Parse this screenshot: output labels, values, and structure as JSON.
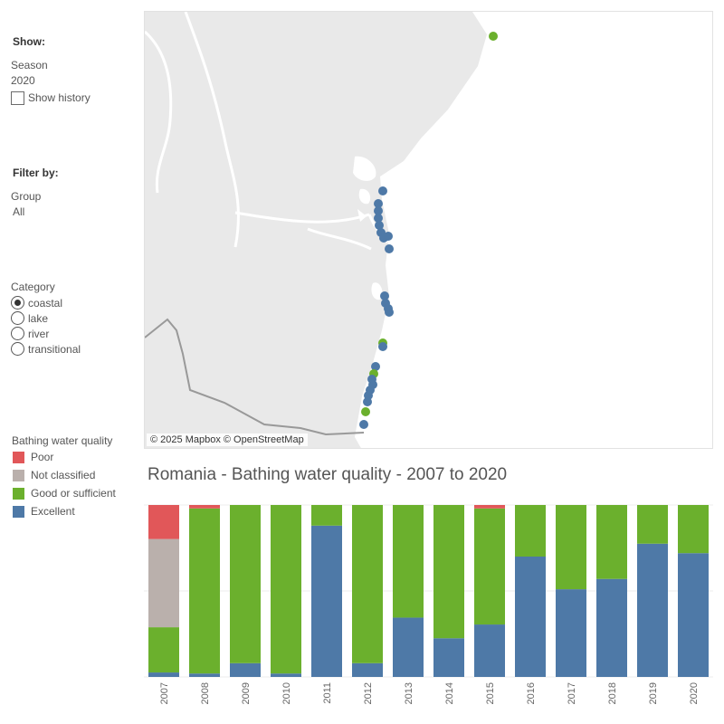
{
  "controls": {
    "show_header": "Show:",
    "season_label": "Season",
    "season_value": "2020",
    "show_history_label": "Show history",
    "show_history_checked": false,
    "filter_header": "Filter by:",
    "group_label": "Group",
    "group_value": "All",
    "category_label": "Category",
    "category_options": [
      "coastal",
      "lake",
      "river",
      "transitional"
    ],
    "category_selected": "coastal"
  },
  "legend": {
    "title": "Bathing water quality",
    "items": [
      {
        "label": "Poor",
        "color": "#e15759"
      },
      {
        "label": "Not classified",
        "color": "#bab0ac"
      },
      {
        "label": "Good or sufficient",
        "color": "#6bb02d"
      },
      {
        "label": "Excellent",
        "color": "#4e79a7"
      }
    ]
  },
  "map": {
    "attribution": "© 2025 Mapbox © OpenStreetMap",
    "land_color": "#e9e9e9",
    "sea_color": "#ffffff"
  },
  "chart_data": {
    "type": "bar",
    "stacked": true,
    "normalized_percent": true,
    "title": "Romania - Bathing water quality - 2007 to 2020",
    "categories": [
      "2007",
      "2008",
      "2009",
      "2010",
      "2011",
      "2012",
      "2013",
      "2014",
      "2015",
      "2016",
      "2017",
      "2018",
      "2019",
      "2020"
    ],
    "series": [
      {
        "name": "Excellent",
        "color": "#4e79a7",
        "values": [
          2.6,
          2.0,
          8.0,
          2.0,
          88.0,
          8.0,
          34.5,
          22.5,
          30.5,
          70.0,
          51.0,
          57.0,
          77.5,
          72.0
        ]
      },
      {
        "name": "Good or sufficient",
        "color": "#6bb02d",
        "values": [
          26.3,
          96.0,
          92.0,
          98.0,
          12.0,
          92.0,
          65.5,
          77.5,
          67.5,
          30.0,
          49.0,
          43.0,
          22.5,
          28.0
        ]
      },
      {
        "name": "Not classified",
        "color": "#bab0ac",
        "values": [
          51.3,
          0,
          0,
          0,
          0,
          0,
          0,
          0,
          0,
          0,
          0,
          0,
          0,
          0
        ]
      },
      {
        "name": "Poor",
        "color": "#e15759",
        "values": [
          19.8,
          2.0,
          0,
          0,
          0,
          0,
          0,
          0,
          2.0,
          0,
          0,
          0,
          0,
          0
        ]
      }
    ],
    "ylim": [
      0,
      100
    ],
    "grid": true,
    "legend_placement": "left"
  }
}
